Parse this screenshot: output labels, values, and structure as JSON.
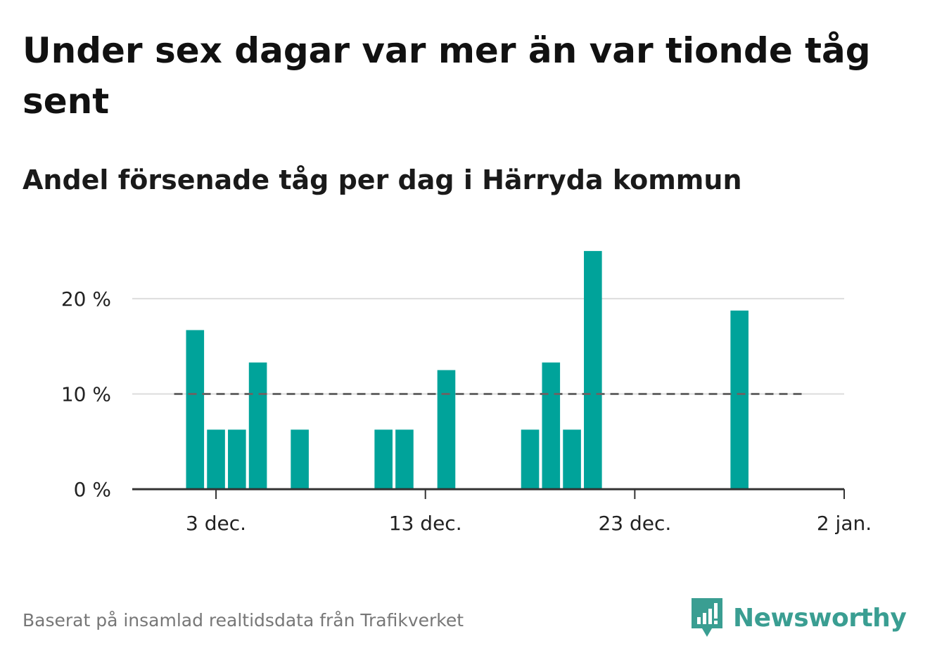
{
  "title": "Under sex dagar var mer än var tionde tåg sent",
  "subtitle": "Andel försenade tåg per dag i Härryda kommun",
  "footer": "Baserat på insamlad realtidsdata från Trafikverket",
  "brand": {
    "name": "Newsworthy",
    "color": "#3a9e92"
  },
  "colors": {
    "bar": "#00a39a",
    "threshold": "#666666",
    "grid": "#dddddd",
    "axis": "#333333"
  },
  "chart_data": {
    "type": "bar",
    "x_type": "date",
    "x": [
      "2023-12-02",
      "2023-12-03",
      "2023-12-04",
      "2023-12-05",
      "2023-12-07",
      "2023-12-11",
      "2023-12-12",
      "2023-12-14",
      "2023-12-18",
      "2023-12-19",
      "2023-12-20",
      "2023-12-21",
      "2023-12-28"
    ],
    "values": [
      16.7,
      6.25,
      6.25,
      13.3,
      6.25,
      6.25,
      6.25,
      12.5,
      6.25,
      13.3,
      6.25,
      25.0,
      18.75
    ],
    "xlim": [
      "2023-11-29",
      "2024-01-02"
    ],
    "ylim": [
      0,
      27
    ],
    "yticks": [
      0,
      10,
      20
    ],
    "ytick_labels": [
      "0 %",
      "10 %",
      "20 %"
    ],
    "xticks": [
      "2023-12-03",
      "2023-12-13",
      "2023-12-23",
      "2024-01-02"
    ],
    "xtick_labels": [
      "3 dec.",
      "13 dec.",
      "23 dec.",
      "2 jan."
    ],
    "reference_line": {
      "y": 10,
      "from": "2023-12-01",
      "to": "2023-12-31",
      "style": "dashed"
    },
    "grid": true
  }
}
